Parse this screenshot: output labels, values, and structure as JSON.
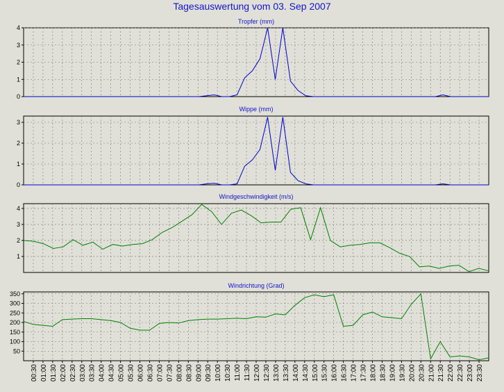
{
  "page": {
    "title": "Tagesauswertung vom 03. Sep 2007"
  },
  "chart_data": [
    {
      "type": "line",
      "title": "Tropfer (mm)",
      "color": "#0000cc",
      "ylim": [
        0,
        4
      ],
      "yticks": [
        0,
        1,
        2,
        3,
        4
      ],
      "series": [
        {
          "values": [
            0,
            0,
            0,
            0,
            0,
            0,
            0,
            0,
            0,
            0,
            0,
            0,
            0,
            0,
            0,
            0,
            0,
            0,
            0,
            0,
            0,
            0,
            0,
            0,
            0.05,
            0.1,
            0,
            0,
            0.1,
            1.1,
            1.5,
            2.2,
            4,
            1,
            4,
            0.9,
            0.35,
            0.05,
            0,
            0,
            0,
            0,
            0,
            0,
            0,
            0,
            0,
            0,
            0,
            0,
            0,
            0,
            0,
            0,
            0,
            0.1,
            0,
            0,
            0,
            0,
            0,
            0
          ]
        }
      ]
    },
    {
      "type": "line",
      "title": "Wippe (mm)",
      "color": "#0000cc",
      "ylim": [
        0,
        3.3
      ],
      "yticks": [
        0,
        1,
        2,
        3
      ],
      "series": [
        {
          "values": [
            0,
            0,
            0,
            0,
            0,
            0,
            0,
            0,
            0,
            0,
            0,
            0,
            0,
            0,
            0,
            0,
            0,
            0,
            0,
            0,
            0,
            0,
            0,
            0,
            0.05,
            0.08,
            0,
            0,
            0.05,
            0.9,
            1.2,
            1.7,
            3.25,
            0.7,
            3.25,
            0.6,
            0.2,
            0.05,
            0,
            0,
            0,
            0,
            0,
            0,
            0,
            0,
            0,
            0,
            0,
            0,
            0,
            0,
            0,
            0,
            0,
            0.05,
            0,
            0,
            0,
            0,
            0,
            0
          ]
        }
      ]
    },
    {
      "type": "line",
      "title": "Windgeschwindigkeit (m/s)",
      "color": "#008000",
      "ylim": [
        0,
        4.3
      ],
      "yticks": [
        1,
        2,
        3,
        4
      ],
      "series": [
        {
          "values": [
            2,
            1.95,
            1.8,
            1.5,
            1.6,
            2.05,
            1.7,
            1.9,
            1.45,
            1.75,
            1.65,
            1.75,
            1.8,
            2.05,
            2.5,
            2.8,
            3.2,
            3.6,
            4.25,
            3.8,
            3,
            3.7,
            3.9,
            3.55,
            3.1,
            3.15,
            3.15,
            3.95,
            4.05,
            2.05,
            4.05,
            2,
            1.6,
            1.7,
            1.75,
            1.85,
            1.85,
            1.55,
            1.2,
            1,
            0.35,
            0.4,
            0.25,
            0.4,
            0.45,
            0.05,
            0.25,
            0.1
          ]
        }
      ]
    },
    {
      "type": "line",
      "title": "Windrichtung (Grad)",
      "color": "#008000",
      "ylim": [
        0,
        360
      ],
      "yticks": [
        50,
        100,
        150,
        200,
        250,
        300,
        350
      ],
      "series": [
        {
          "values": [
            205,
            190,
            185,
            180,
            215,
            218,
            220,
            220,
            215,
            210,
            200,
            170,
            160,
            160,
            195,
            200,
            197,
            210,
            215,
            218,
            218,
            220,
            222,
            220,
            230,
            228,
            245,
            240,
            290,
            330,
            345,
            335,
            345,
            180,
            185,
            240,
            255,
            230,
            225,
            220,
            295,
            350,
            10,
            100,
            20,
            25,
            20,
            5,
            15
          ]
        }
      ]
    }
  ],
  "x_axis": {
    "tick_labels": [
      "00:30",
      "01:00",
      "01:30",
      "02:00",
      "02:30",
      "03:00",
      "03:30",
      "04:00",
      "04:30",
      "05:00",
      "05:30",
      "06:00",
      "06:30",
      "07:00",
      "07:30",
      "08:00",
      "08:30",
      "09:00",
      "09:30",
      "10:00",
      "10:30",
      "11:00",
      "11:30",
      "12:00",
      "12:30",
      "13:00",
      "13:30",
      "14:00",
      "14:30",
      "15:00",
      "15:30",
      "16:00",
      "16:30",
      "17:00",
      "17:30",
      "18:00",
      "18:30",
      "19:00",
      "19:30",
      "20:00",
      "20:30",
      "21:00",
      "21:30",
      "22:00",
      "22:30",
      "23:00",
      "23:30"
    ]
  }
}
